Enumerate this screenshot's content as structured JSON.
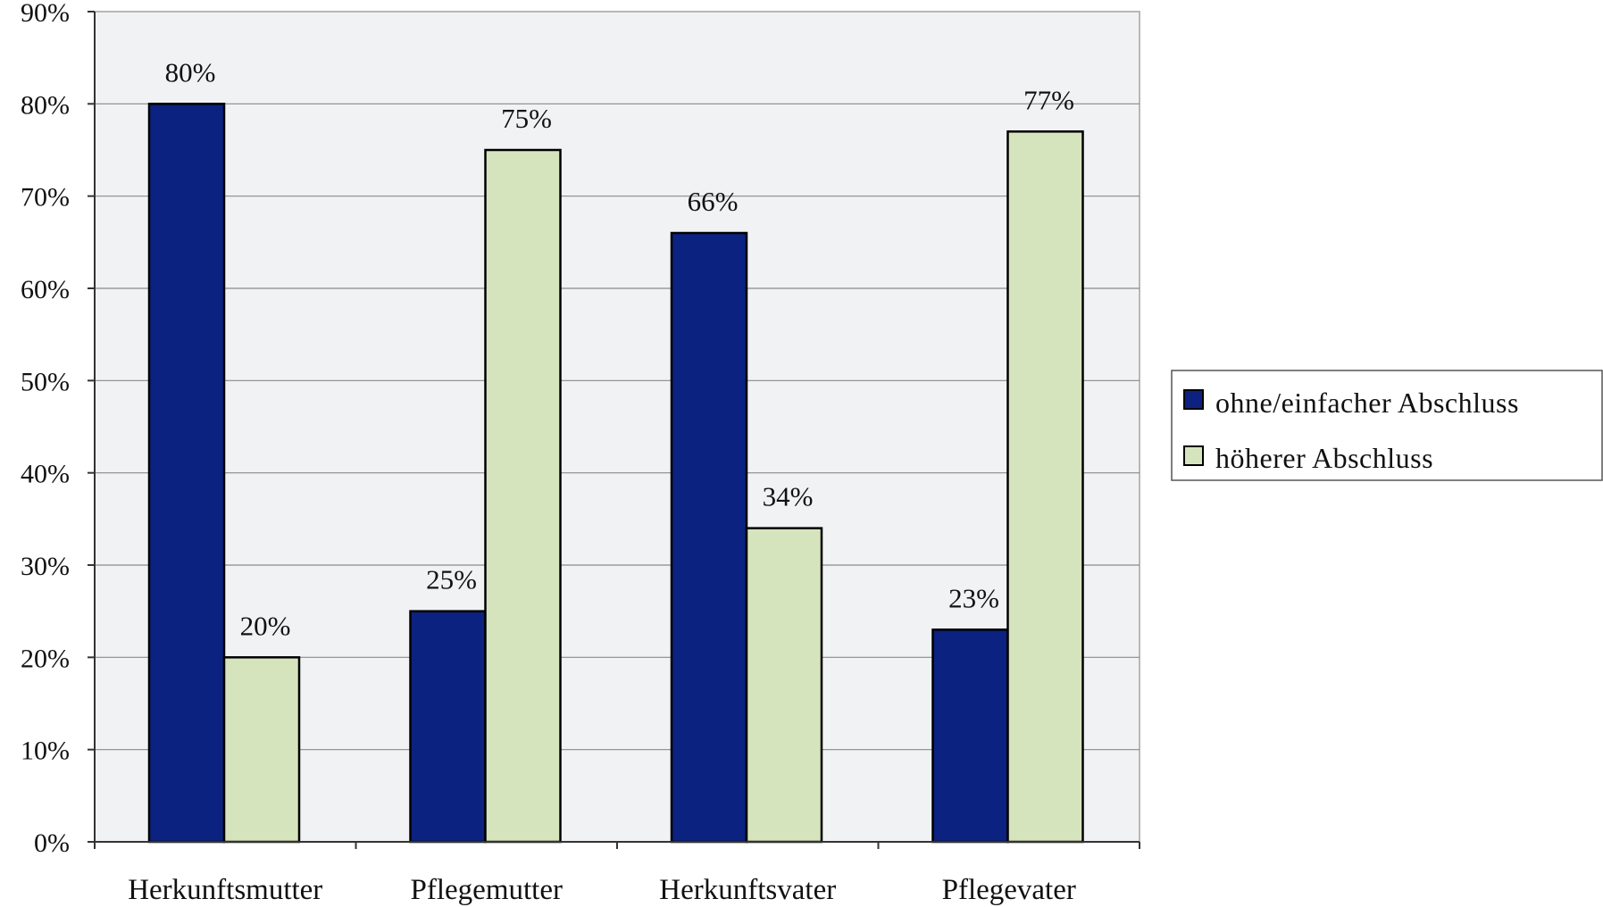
{
  "chart_data": {
    "type": "bar",
    "categories": [
      "Herkunftsmutter",
      "Pflegemutter",
      "Herkunftsvater",
      "Pflegevater"
    ],
    "series": [
      {
        "name": "ohne/einfacher Abschluss",
        "values": [
          80,
          25,
          66,
          23
        ],
        "color": "#0b2280"
      },
      {
        "name": "höherer Abschluss",
        "values": [
          20,
          75,
          34,
          77
        ],
        "color": "#d6e4bd"
      }
    ],
    "data_labels": [
      [
        "80%",
        "25%",
        "66%",
        "23%"
      ],
      [
        "20%",
        "75%",
        "34%",
        "77%"
      ]
    ],
    "y_tick_labels": [
      "0%",
      "10%",
      "20%",
      "30%",
      "40%",
      "50%",
      "60%",
      "70%",
      "80%",
      "90%"
    ],
    "ylim": [
      0,
      90
    ],
    "y_unit": "%",
    "grid": true,
    "legend_position": "right",
    "plot_background": "#f1f2f4",
    "title": "",
    "xlabel": "",
    "ylabel": ""
  }
}
